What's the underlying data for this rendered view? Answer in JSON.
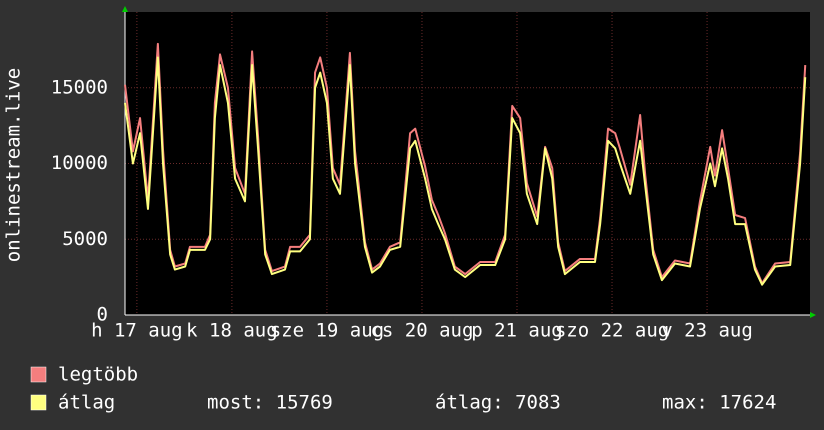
{
  "chart_data": {
    "type": "line",
    "ylabel": "onlinestream.live",
    "x": [
      0,
      2.0,
      3.8,
      5.8,
      8.3,
      9.6,
      11.4,
      12.6,
      15.2,
      16.4,
      20.2,
      21.5,
      22.7,
      24.0,
      26.0,
      27.8,
      30.3,
      32.1,
      33.6,
      35.4,
      37.1,
      40.4,
      41.7,
      44.2,
      46.7,
      48.0,
      49.3,
      51.0,
      52.5,
      54.3,
      56.8,
      58.1,
      60.6,
      62.4,
      64.4,
      66.9,
      69.5,
      72.0,
      73.3,
      75.8,
      77.5,
      79.1,
      80.8,
      83.3,
      85.9,
      89.7,
      93.5,
      96.0,
      97.8,
      99.8,
      101.5,
      104.1,
      106.1,
      107.9,
      109.4,
      111.1,
      114.9,
      118.7,
      120.0,
      122.0,
      123.8,
      125.0,
      127.6,
      130.1,
      131.4,
      133.4,
      135.6,
      138.9,
      142.7,
      145.2,
      147.8,
      149.0,
      150.8,
      152.3,
      154.1,
      156.6,
      159.1,
      160.9,
      164.2,
      168.0,
      170.5,
      171.8
    ],
    "series": [
      {
        "name": "legtöbb",
        "color": "#f47e7e",
        "values": [
          15200,
          10800,
          13000,
          7600,
          17900,
          10900,
          4300,
          3200,
          3400,
          4500,
          4500,
          5300,
          14000,
          17200,
          15000,
          9700,
          8000,
          17400,
          11800,
          4300,
          2900,
          3200,
          4500,
          4500,
          5300,
          16000,
          17000,
          15000,
          9700,
          8600,
          17300,
          10800,
          4800,
          3000,
          3400,
          4500,
          4800,
          12000,
          12300,
          9800,
          7600,
          6600,
          5400,
          3200,
          2700,
          3500,
          3500,
          5300,
          13800,
          13000,
          8700,
          6500,
          11100,
          9700,
          4800,
          2900,
          3700,
          3700,
          6400,
          12300,
          12000,
          11000,
          8600,
          13200,
          9200,
          4300,
          2500,
          3600,
          3400,
          7500,
          11100,
          9200,
          12200,
          9700,
          6600,
          6400,
          3200,
          2100,
          3400,
          3500,
          10700,
          16500
        ]
      },
      {
        "name": "átlag",
        "color": "#ffff80",
        "values": [
          14000,
          10000,
          12000,
          7000,
          17000,
          10000,
          4000,
          3000,
          3200,
          4300,
          4300,
          5000,
          13000,
          16500,
          14000,
          9000,
          7500,
          16500,
          11000,
          4000,
          2700,
          3000,
          4200,
          4200,
          5000,
          15000,
          16000,
          14000,
          9000,
          8000,
          16500,
          10000,
          4500,
          2800,
          3200,
          4300,
          4500,
          11000,
          11500,
          9000,
          7000,
          6000,
          5000,
          3000,
          2500,
          3300,
          3300,
          5000,
          13000,
          12000,
          8000,
          6000,
          11000,
          9000,
          4500,
          2700,
          3500,
          3500,
          6000,
          11500,
          11000,
          10000,
          8000,
          11500,
          8500,
          4000,
          2300,
          3400,
          3200,
          7000,
          10000,
          8500,
          11000,
          9000,
          6000,
          6000,
          3000,
          2000,
          3200,
          3300,
          10000,
          15700
        ]
      }
    ],
    "stats": [
      "most: 15769",
      "átlag: 7083",
      "max: 17624"
    ],
    "xlim": [
      0,
      173
    ],
    "xticks": [
      {
        "value": 3,
        "label": "h 17 aug"
      },
      {
        "value": 27,
        "label": "k 18 aug"
      },
      {
        "value": 51,
        "label": "sze 19 aug"
      },
      {
        "value": 75,
        "label": "cs 20 aug"
      },
      {
        "value": 99,
        "label": "p 21 aug"
      },
      {
        "value": 123,
        "label": "szo 22 aug"
      },
      {
        "value": 147,
        "label": "v 23 aug"
      }
    ],
    "ylim": [
      0,
      20000
    ],
    "yticks": [
      0,
      5000,
      10000,
      15000
    ],
    "grid": true
  }
}
